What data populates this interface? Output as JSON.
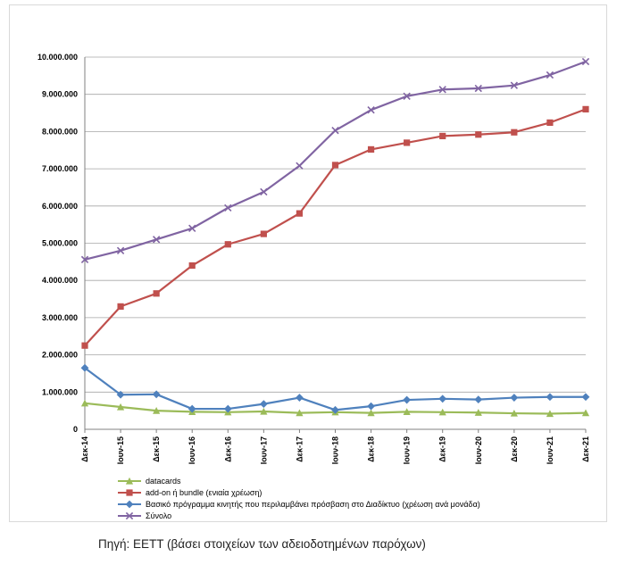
{
  "source_note": "Πηγή: ΕΕΤΤ (βάσει στοιχείων των αδειοδοτημένων παρόχων)",
  "chart_data": {
    "type": "line",
    "title": "",
    "xlabel": "",
    "ylabel": "",
    "ylim": [
      0,
      10000000
    ],
    "ytick_values": [
      0,
      1000000,
      2000000,
      3000000,
      4000000,
      5000000,
      6000000,
      7000000,
      8000000,
      9000000,
      10000000
    ],
    "ytick_labels": [
      "0",
      "1.000.000",
      "2.000.000",
      "3.000.000",
      "4.000.000",
      "5.000.000",
      "6.000.000",
      "7.000.000",
      "8.000.000",
      "9.000.000",
      "10.000.000"
    ],
    "grid": true,
    "legend_position": "bottom-left",
    "categories": [
      "Δεκ-14",
      "Ιουν-15",
      "Δεκ-15",
      "Ιουν-16",
      "Δεκ-16",
      "Ιουν-17",
      "Δεκ-17",
      "Ιουν-18",
      "Δεκ-18",
      "Ιουν-19",
      "Δεκ-19",
      "Ιουν-20",
      "Δεκ-20",
      "Ιουν-21",
      "Δεκ-21"
    ],
    "series": [
      {
        "name": "datacards",
        "color": "#9bbb59",
        "marker": "triangle",
        "values": [
          700000,
          600000,
          500000,
          470000,
          460000,
          480000,
          440000,
          460000,
          440000,
          470000,
          460000,
          450000,
          430000,
          420000,
          440000
        ]
      },
      {
        "name": "add-on ή bundle (ενιαία χρέωση)",
        "color": "#c0504d",
        "marker": "square",
        "values": [
          2250000,
          3300000,
          3650000,
          4400000,
          4970000,
          5250000,
          5800000,
          7100000,
          7520000,
          7700000,
          7880000,
          7920000,
          7980000,
          8240000,
          8600000
        ]
      },
      {
        "name": "Βασικό πρόγραμμα κινητής  που περιλαμβάνει πρόσβαση στο Διαδίκτυο (χρέωση ανά μονάδα)",
        "color": "#4f81bd",
        "marker": "diamond",
        "values": [
          1650000,
          930000,
          940000,
          550000,
          550000,
          680000,
          850000,
          520000,
          620000,
          790000,
          820000,
          800000,
          850000,
          870000,
          870000
        ]
      },
      {
        "name": "Σύνολο",
        "color": "#8064a2",
        "marker": "x",
        "values": [
          4560000,
          4800000,
          5100000,
          5400000,
          5950000,
          6380000,
          7080000,
          8030000,
          8580000,
          8950000,
          9130000,
          9160000,
          9240000,
          9520000,
          9880000
        ]
      }
    ]
  }
}
